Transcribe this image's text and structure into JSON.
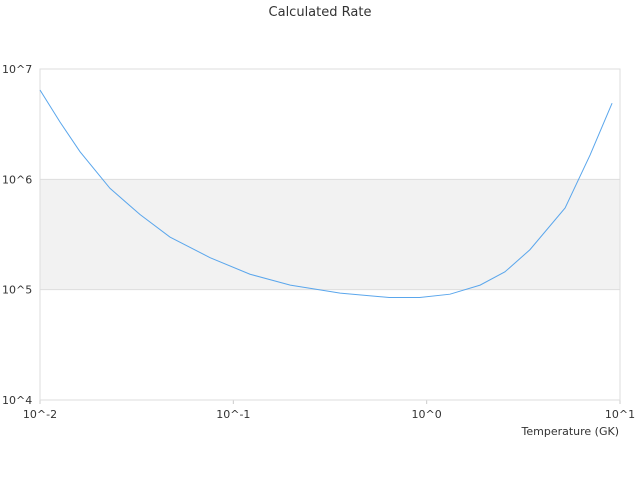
{
  "chart_data": {
    "type": "line",
    "title": "Calculated Rate",
    "x_label": "Temperature (GK)",
    "x_log": true,
    "y_log": true,
    "grid": true,
    "color": "#5aa6ec",
    "xlim": [
      0.01,
      10
    ],
    "ylim": [
      10000,
      10000000
    ],
    "xticks": [
      {
        "value": 0.01,
        "label": "10^-2"
      },
      {
        "value": 0.1,
        "label": "10^-1"
      },
      {
        "value": 1,
        "label": "10^0"
      },
      {
        "value": 10,
        "label": "10^1"
      }
    ],
    "yticks": [
      {
        "value": 10000,
        "label": "10^4"
      },
      {
        "value": 100000,
        "label": "10^5"
      },
      {
        "value": 1000000,
        "label": "10^6"
      },
      {
        "value": 10000000,
        "label": "10^7"
      }
    ],
    "x": [
      0.01,
      0.0127,
      0.0161,
      0.023,
      0.0329,
      0.047,
      0.0758,
      0.122,
      0.197,
      0.357,
      0.64,
      0.92,
      1.32,
      1.89,
      2.54,
      3.42,
      5.2,
      7.0,
      9.1
    ],
    "values": [
      6450000,
      3300000,
      1780000,
      830000,
      480000,
      300000,
      195000,
      138000,
      110000,
      93000,
      85000,
      85000,
      91000,
      110000,
      145000,
      230000,
      550000,
      1660000,
      4900000
    ]
  }
}
